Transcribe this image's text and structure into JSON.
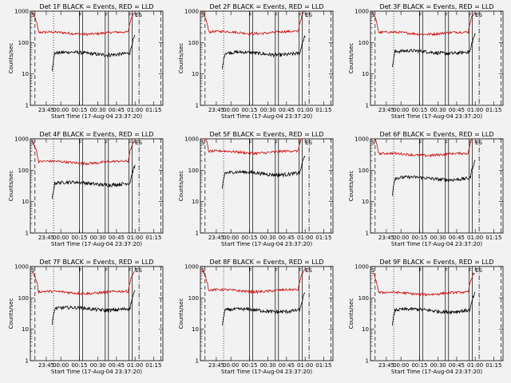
{
  "colors": {
    "events": "#000000",
    "lld": "#cc0000",
    "background": "#f2f2f2"
  },
  "chart_data": [
    {
      "type": "line",
      "title": "Det 1F BLACK = Events, RED = LLD",
      "xlabel": "Start Time (17-Aug-04 23:37:20)",
      "ylabel": "Counts/sec",
      "yscale": "log",
      "ylim": [
        1,
        1000
      ],
      "xticks": [
        "23:45",
        "00:00",
        "00:15",
        "00:30",
        "00:45",
        "01:00",
        "01:15"
      ],
      "yticks": [
        "1",
        "10",
        "100",
        "1000"
      ],
      "markers": [
        "S",
        "F",
        "F",
        "F",
        "ES"
      ],
      "series": [
        {
          "color": "#cc0000",
          "level": 200,
          "segment": "lld"
        },
        {
          "color": "#000000",
          "level": 45,
          "segment": "events"
        }
      ]
    },
    {
      "type": "line",
      "title": "Det 2F BLACK = Events, RED = LLD",
      "xlabel": "Start Time (17-Aug-04 23:37:20)",
      "ylabel": "Counts/sec",
      "yscale": "log",
      "ylim": [
        1,
        1000
      ],
      "xticks": [
        "23:45",
        "00:00",
        "00:15",
        "00:30",
        "00:45",
        "01:00",
        "01:15"
      ],
      "yticks": [
        "1",
        "10",
        "100",
        "1000"
      ],
      "markers": [
        "S",
        "F",
        "F",
        "F",
        "ES"
      ],
      "series": [
        {
          "color": "#cc0000",
          "level": 210,
          "segment": "lld"
        },
        {
          "color": "#000000",
          "level": 45,
          "segment": "events"
        }
      ]
    },
    {
      "type": "line",
      "title": "Det 3F BLACK = Events, RED = LLD",
      "xlabel": "Start Time (17-Aug-04 23:37:20)",
      "ylabel": "Counts/sec",
      "yscale": "log",
      "ylim": [
        1,
        1000
      ],
      "xticks": [
        "23:45",
        "00:00",
        "00:15",
        "00:30",
        "00:45",
        "01:00",
        "01:15"
      ],
      "yticks": [
        "1",
        "10",
        "100",
        "1000"
      ],
      "markers": [
        "S",
        "F",
        "F",
        "F",
        "ES"
      ],
      "series": [
        {
          "color": "#cc0000",
          "level": 200,
          "segment": "lld"
        },
        {
          "color": "#000000",
          "level": 50,
          "segment": "events"
        }
      ]
    },
    {
      "type": "line",
      "title": "Det 4F BLACK = Events, RED = LLD",
      "xlabel": "Start Time (17-Aug-04 23:37:20)",
      "ylabel": "Counts/sec",
      "yscale": "log",
      "ylim": [
        1,
        1000
      ],
      "xticks": [
        "23:45",
        "00:00",
        "00:15",
        "00:30",
        "00:45",
        "01:00",
        "01:15"
      ],
      "yticks": [
        "1",
        "10",
        "100",
        "1000"
      ],
      "markers": [
        "S",
        "F",
        "F",
        "F",
        "ES"
      ],
      "series": [
        {
          "color": "#cc0000",
          "level": 180,
          "segment": "lld"
        },
        {
          "color": "#000000",
          "level": 38,
          "segment": "events"
        }
      ]
    },
    {
      "type": "line",
      "title": "Det 5F BLACK = Events, RED = LLD",
      "xlabel": "Start Time (17-Aug-04 23:37:20)",
      "ylabel": "Counts/sec",
      "yscale": "log",
      "ylim": [
        1,
        1000
      ],
      "xticks": [
        "23:45",
        "00:00",
        "00:15",
        "00:30",
        "00:45",
        "01:00",
        "01:15"
      ],
      "yticks": [
        "1",
        "10",
        "100",
        "1000"
      ],
      "markers": [
        "S",
        "F",
        "F",
        "F",
        "ES"
      ],
      "series": [
        {
          "color": "#cc0000",
          "level": 380,
          "segment": "lld"
        },
        {
          "color": "#000000",
          "level": 80,
          "segment": "events"
        }
      ]
    },
    {
      "type": "line",
      "title": "Det 6F BLACK = Events, RED = LLD",
      "xlabel": "Start Time (17-Aug-04 23:37:20)",
      "ylabel": "Counts/sec",
      "yscale": "log",
      "ylim": [
        1,
        1000
      ],
      "xticks": [
        "23:45",
        "00:00",
        "00:15",
        "00:30",
        "00:45",
        "01:00",
        "01:15"
      ],
      "yticks": [
        "1",
        "10",
        "100",
        "1000"
      ],
      "markers": [
        "S",
        "F",
        "F",
        "F",
        "ES"
      ],
      "series": [
        {
          "color": "#cc0000",
          "level": 320,
          "segment": "lld"
        },
        {
          "color": "#000000",
          "level": 55,
          "segment": "events"
        }
      ]
    },
    {
      "type": "line",
      "title": "Det 7F BLACK = Events, RED = LLD",
      "xlabel": "Start Time (17-Aug-04 23:37:20)",
      "ylabel": "Counts/sec",
      "yscale": "log",
      "ylim": [
        1,
        1000
      ],
      "xticks": [
        "23:45",
        "00:00",
        "00:15",
        "00:30",
        "00:45",
        "01:00",
        "01:15"
      ],
      "yticks": [
        "1",
        "10",
        "100",
        "1000"
      ],
      "markers": [
        "S",
        "F",
        "F",
        "F",
        "ES"
      ],
      "series": [
        {
          "color": "#cc0000",
          "level": 150,
          "segment": "lld"
        },
        {
          "color": "#000000",
          "level": 45,
          "segment": "events"
        }
      ]
    },
    {
      "type": "line",
      "title": "Det 8F BLACK = Events, RED = LLD",
      "xlabel": "Start Time (17-Aug-04 23:37:20)",
      "ylabel": "Counts/sec",
      "yscale": "log",
      "ylim": [
        1,
        1000
      ],
      "xticks": [
        "23:45",
        "00:00",
        "00:15",
        "00:30",
        "00:45",
        "01:00",
        "01:15"
      ],
      "yticks": [
        "1",
        "10",
        "100",
        "1000"
      ],
      "markers": [
        "S",
        "F",
        "F",
        "F",
        "ES"
      ],
      "series": [
        {
          "color": "#cc0000",
          "level": 170,
          "segment": "lld"
        },
        {
          "color": "#000000",
          "level": 40,
          "segment": "events"
        }
      ]
    },
    {
      "type": "line",
      "title": "Det 9F BLACK = Events, RED = LLD",
      "xlabel": "Start Time (17-Aug-04 23:37:20)",
      "ylabel": "Counts/sec",
      "yscale": "log",
      "ylim": [
        1,
        1000
      ],
      "xticks": [
        "23:45",
        "00:00",
        "00:15",
        "00:30",
        "00:45",
        "01:00",
        "01:15"
      ],
      "yticks": [
        "1",
        "10",
        "100",
        "1000"
      ],
      "markers": [
        "S",
        "F",
        "F",
        "F",
        "ES"
      ],
      "series": [
        {
          "color": "#cc0000",
          "level": 140,
          "segment": "lld"
        },
        {
          "color": "#000000",
          "level": 40,
          "segment": "events"
        }
      ]
    }
  ]
}
